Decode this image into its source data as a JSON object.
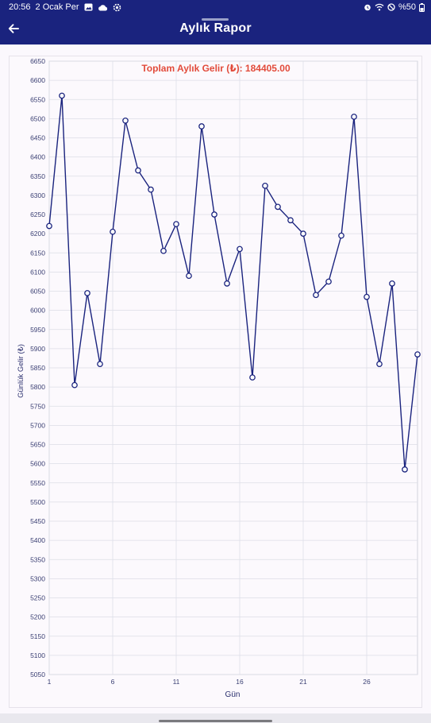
{
  "status_bar": {
    "time": "20:56",
    "date": "2 Ocak Per",
    "battery": "%50",
    "icons": [
      "gallery-icon",
      "cloud-icon",
      "settings-icon",
      "alarm-icon",
      "wifi-icon",
      "dnd-icon",
      "battery-icon"
    ]
  },
  "app_bar": {
    "title": "Aylık Rapor",
    "back_icon": "arrow-left-icon"
  },
  "chart_data": {
    "type": "line",
    "title": "Toplam Aylık Gelir (₺):  184405.00",
    "xlabel": "Gün",
    "ylabel": "Günlük Gelir (₺)",
    "xlim": [
      1,
      30
    ],
    "ylim": [
      5050,
      6650
    ],
    "ytick_step": 50,
    "xticks": [
      1,
      6,
      11,
      16,
      21,
      26
    ],
    "x": [
      1,
      2,
      3,
      4,
      5,
      6,
      7,
      8,
      9,
      10,
      11,
      12,
      13,
      14,
      15,
      16,
      17,
      18,
      19,
      20,
      21,
      22,
      23,
      24,
      25,
      26,
      27,
      28,
      29,
      30
    ],
    "values": [
      6220,
      6560,
      5805,
      6045,
      5860,
      6205,
      6495,
      6365,
      6315,
      6155,
      6225,
      6090,
      6480,
      6250,
      6070,
      6160,
      5825,
      6325,
      6270,
      6235,
      6200,
      6040,
      6075,
      6195,
      6505,
      6035,
      5860,
      6070,
      5585,
      5885
    ],
    "grid": true,
    "legend": "none",
    "colors": {
      "line": "#1a237e",
      "point_fill": "#ffffff",
      "title": "#e24b3b",
      "grid": "#dcdde6"
    }
  }
}
